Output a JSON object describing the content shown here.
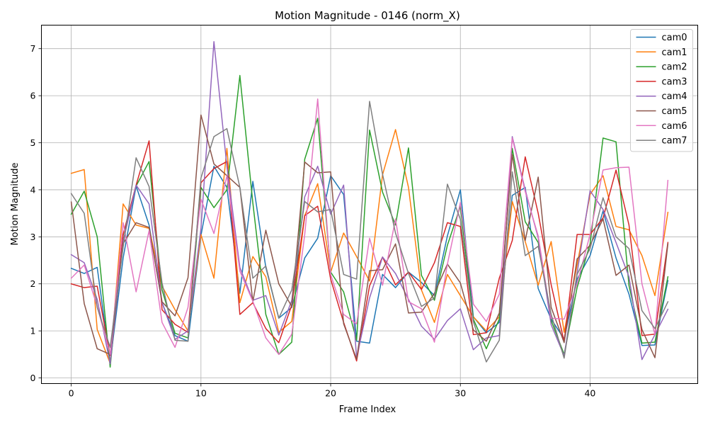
{
  "chart_data": {
    "type": "line",
    "title": "Motion Magnitude - 0146 (norm_X)",
    "xlabel": "Frame Index",
    "ylabel": "Motion Magnitude",
    "xlim": [
      -2.3,
      48.3
    ],
    "ylim": [
      -0.12,
      7.5
    ],
    "xticks": [
      0,
      10,
      20,
      30,
      40
    ],
    "yticks": [
      0,
      1,
      2,
      3,
      4,
      5,
      6,
      7
    ],
    "grid": true,
    "legend_position": "top-right",
    "x": [
      0,
      1,
      2,
      3,
      4,
      5,
      6,
      7,
      8,
      9,
      10,
      11,
      12,
      13,
      14,
      15,
      16,
      17,
      18,
      19,
      20,
      21,
      22,
      23,
      24,
      25,
      26,
      27,
      28,
      29,
      30,
      31,
      32,
      33,
      34,
      35,
      36,
      37,
      38,
      39,
      40,
      41,
      42,
      43,
      44,
      45,
      46
    ],
    "series": [
      {
        "name": "cam0",
        "color": "#1f77b4",
        "values": [
          2.33,
          2.22,
          2.35,
          0.32,
          2.55,
          4.08,
          3.25,
          1.6,
          0.9,
          0.78,
          3.03,
          4.5,
          4.05,
          1.8,
          4.18,
          2.35,
          1.27,
          1.5,
          2.55,
          2.97,
          4.3,
          3.9,
          0.78,
          0.74,
          2.2,
          1.92,
          2.25,
          2.03,
          1.75,
          3.02,
          4.0,
          1.3,
          0.96,
          1.18,
          3.88,
          4.05,
          1.9,
          1.25,
          0.83,
          2.1,
          2.6,
          3.55,
          2.55,
          1.78,
          0.69,
          0.7,
          2.07
        ]
      },
      {
        "name": "cam1",
        "color": "#ff7f0e",
        "values": [
          4.35,
          4.43,
          1.03,
          0.31,
          3.7,
          3.25,
          3.18,
          1.95,
          1.45,
          1.0,
          3.05,
          2.12,
          4.88,
          1.6,
          2.58,
          2.15,
          0.97,
          1.2,
          3.45,
          4.13,
          2.25,
          3.08,
          2.58,
          2.06,
          4.32,
          5.28,
          4.05,
          1.87,
          1.18,
          2.2,
          1.75,
          1.3,
          1.0,
          1.3,
          3.75,
          2.9,
          1.97,
          2.9,
          0.97,
          2.4,
          3.9,
          4.3,
          3.22,
          3.15,
          2.6,
          1.75,
          3.52
        ]
      },
      {
        "name": "cam2",
        "color": "#2ca02c",
        "values": [
          3.48,
          3.97,
          3.0,
          0.23,
          3.03,
          4.08,
          4.6,
          1.87,
          0.95,
          0.85,
          4.05,
          3.62,
          4.0,
          6.43,
          3.72,
          1.35,
          0.5,
          0.76,
          4.65,
          5.52,
          2.25,
          1.83,
          0.8,
          5.27,
          3.95,
          3.25,
          4.89,
          2.18,
          1.65,
          2.82,
          3.65,
          1.25,
          0.62,
          1.25,
          4.88,
          3.32,
          2.88,
          1.22,
          0.5,
          1.92,
          2.85,
          5.1,
          5.02,
          1.96,
          0.74,
          0.76,
          2.15
        ]
      },
      {
        "name": "cam3",
        "color": "#d62728",
        "values": [
          2.0,
          1.92,
          1.95,
          0.48,
          3.05,
          4.1,
          5.04,
          1.45,
          1.14,
          0.97,
          4.15,
          4.45,
          4.6,
          1.35,
          1.6,
          1.05,
          0.75,
          1.55,
          3.45,
          3.65,
          2.1,
          1.18,
          0.36,
          1.96,
          2.57,
          1.98,
          2.25,
          1.88,
          2.45,
          3.3,
          3.22,
          0.92,
          0.96,
          2.12,
          2.92,
          4.7,
          3.5,
          1.98,
          0.77,
          3.05,
          3.05,
          3.4,
          4.42,
          3.25,
          0.9,
          0.93,
          2.88
        ]
      },
      {
        "name": "cam4",
        "color": "#9467bd",
        "values": [
          2.62,
          2.45,
          1.67,
          0.3,
          2.9,
          4.1,
          3.7,
          1.6,
          0.82,
          1.0,
          3.18,
          7.15,
          4.5,
          2.35,
          1.65,
          1.75,
          0.91,
          1.65,
          3.85,
          4.5,
          3.48,
          4.1,
          0.43,
          1.7,
          2.57,
          2.22,
          1.67,
          1.1,
          0.82,
          1.22,
          1.47,
          0.6,
          0.85,
          0.9,
          5.13,
          4.0,
          2.98,
          1.13,
          0.47,
          2.23,
          3.98,
          3.58,
          2.88,
          2.15,
          0.39,
          0.92,
          1.46
        ]
      },
      {
        "name": "cam5",
        "color": "#8c564b",
        "values": [
          3.74,
          1.58,
          0.62,
          0.5,
          2.85,
          3.3,
          3.2,
          1.62,
          1.32,
          2.13,
          5.59,
          4.55,
          4.3,
          4.05,
          1.62,
          3.14,
          2.0,
          1.52,
          4.59,
          4.36,
          4.38,
          1.15,
          0.4,
          2.28,
          2.3,
          2.85,
          1.38,
          1.4,
          1.8,
          2.42,
          2.02,
          1.02,
          0.78,
          1.38,
          4.75,
          2.92,
          4.27,
          1.5,
          0.75,
          2.53,
          2.82,
          3.38,
          2.18,
          2.4,
          1.03,
          0.43,
          2.85
        ]
      },
      {
        "name": "cam6",
        "color": "#e377c2",
        "values": [
          2.12,
          2.4,
          1.52,
          0.5,
          3.3,
          1.83,
          3.13,
          1.18,
          0.65,
          1.5,
          3.8,
          3.07,
          4.3,
          2.27,
          1.63,
          0.85,
          0.5,
          0.93,
          3.05,
          5.93,
          2.2,
          1.35,
          1.15,
          2.97,
          1.97,
          3.38,
          1.62,
          1.47,
          0.76,
          2.42,
          3.73,
          1.57,
          1.2,
          1.78,
          5.1,
          3.96,
          3.02,
          1.27,
          1.25,
          2.0,
          3.05,
          4.42,
          4.47,
          4.48,
          2.0,
          0.92,
          4.2
        ]
      },
      {
        "name": "cam7",
        "color": "#7f7f7f",
        "values": [
          3.92,
          3.5,
          1.5,
          0.65,
          2.78,
          4.68,
          4.07,
          2.02,
          0.8,
          0.78,
          4.25,
          5.13,
          5.3,
          4.05,
          2.12,
          2.38,
          1.27,
          1.87,
          3.75,
          3.53,
          3.58,
          2.2,
          2.1,
          5.88,
          4.33,
          3.08,
          2.22,
          1.52,
          1.7,
          4.12,
          3.37,
          1.2,
          0.34,
          0.8,
          4.38,
          2.6,
          2.8,
          1.35,
          0.42,
          2.2,
          2.75,
          3.83,
          3.0,
          2.75,
          1.43,
          1.05,
          1.62
        ]
      }
    ]
  }
}
